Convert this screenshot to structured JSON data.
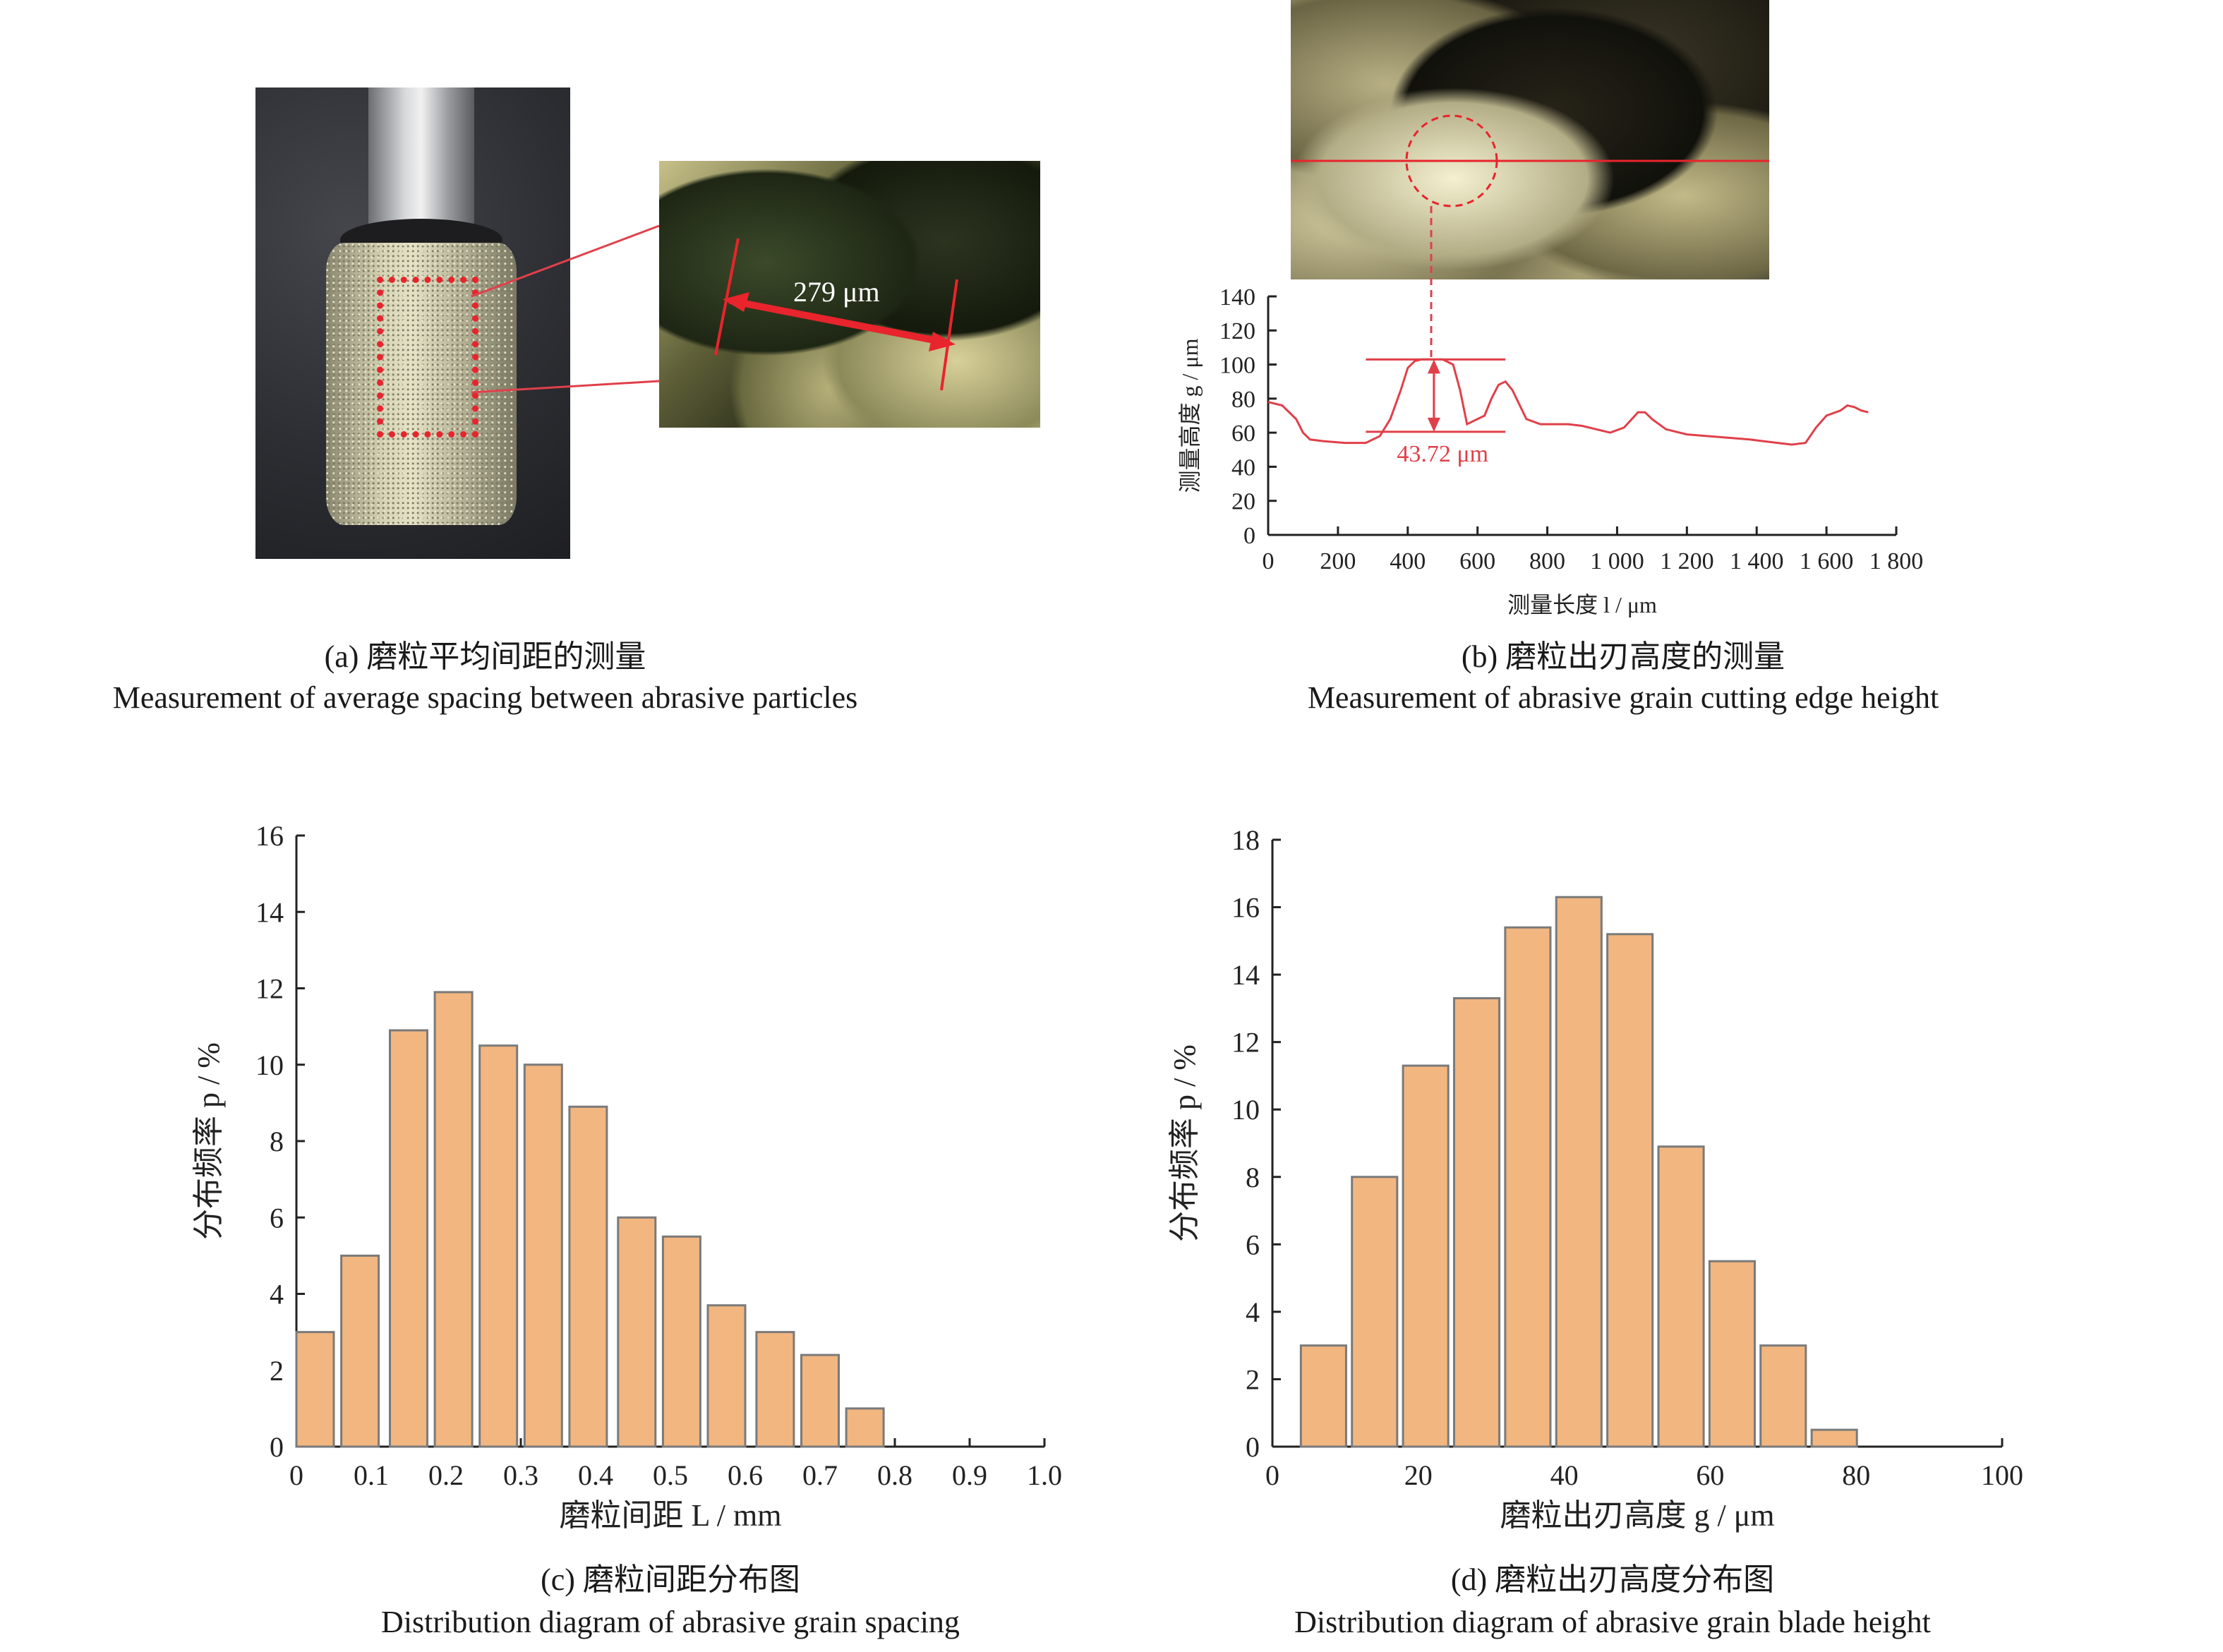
{
  "panel_a": {
    "scale_label": "279 μm",
    "caption_cn": "(a) 磨粒平均间距的测量",
    "caption_en": "Measurement of average spacing between abrasive particles"
  },
  "panel_b": {
    "caption_cn": "(b) 磨粒出刃高度的测量",
    "caption_en": "Measurement of abrasive grain cutting edge height",
    "annotation": "43.72 μm",
    "chart": {
      "type": "line",
      "xlabel": "测量长度 l / μm",
      "ylabel": "测量高度 g / μm",
      "xlim": [
        0,
        1800
      ],
      "ylim": [
        0,
        140
      ],
      "x_ticks": [
        "0",
        "200",
        "400",
        "600",
        "800",
        "1 000",
        "1 200",
        "1 400",
        "1 600",
        "1 800"
      ],
      "y_ticks": [
        "0",
        "20",
        "40",
        "60",
        "80",
        "100",
        "120",
        "140"
      ],
      "color": "#e0404a",
      "series": [
        {
          "x": [
            0,
            40,
            80,
            100,
            120,
            160,
            220,
            280,
            320,
            350,
            380,
            400,
            420,
            440,
            470,
            500,
            530,
            550,
            570,
            590,
            620,
            640,
            660,
            680,
            700,
            740,
            780,
            820,
            860,
            900,
            940,
            980,
            1020,
            1060,
            1080,
            1100,
            1140,
            1200,
            1260,
            1320,
            1380,
            1420,
            1460,
            1500,
            1540,
            1570,
            1600,
            1640,
            1660,
            1680,
            1700,
            1720
          ],
          "y": [
            78,
            76,
            68,
            60,
            56,
            55,
            54,
            54,
            58,
            68,
            85,
            98,
            102,
            103,
            103,
            103,
            100,
            85,
            65,
            67,
            70,
            80,
            88,
            90,
            85,
            68,
            65,
            65,
            65,
            64,
            62,
            60,
            63,
            72,
            72,
            68,
            62,
            59,
            58,
            57,
            56,
            55,
            54,
            53,
            54,
            63,
            70,
            73,
            76,
            75,
            73,
            72
          ]
        }
      ]
    }
  },
  "panel_c": {
    "caption_cn": "(c) 磨粒间距分布图",
    "caption_en": "Distribution diagram of abrasive grain spacing",
    "chart": {
      "type": "bar",
      "xlabel": "磨粒间距 L / mm",
      "ylabel": "分布频率 p / %",
      "xlim": [
        0,
        1.0
      ],
      "ylim": [
        0,
        16
      ],
      "x_ticks": [
        "0",
        "0.1",
        "0.2",
        "0.3",
        "0.4",
        "0.5",
        "0.6",
        "0.7",
        "0.8",
        "0.9",
        "1.0"
      ],
      "y_ticks": [
        "0",
        "2",
        "4",
        "6",
        "8",
        "10",
        "12",
        "14",
        "16"
      ],
      "bar_color": "#f2b681",
      "categories": [
        0.025,
        0.085,
        0.15,
        0.21,
        0.27,
        0.33,
        0.39,
        0.455,
        0.515,
        0.575,
        0.64,
        0.7,
        0.76
      ],
      "values": [
        3,
        5,
        10.9,
        11.9,
        10.5,
        10,
        8.9,
        6,
        5.5,
        3.7,
        3,
        2.4,
        1
      ]
    }
  },
  "panel_d": {
    "caption_cn": "(d) 磨粒出刃高度分布图",
    "caption_en": "Distribution diagram of abrasive grain blade height",
    "chart": {
      "type": "bar",
      "xlabel": "磨粒出刃高度 g / μm",
      "ylabel": "分布频率 p / %",
      "xlim": [
        0,
        100
      ],
      "ylim": [
        0,
        18
      ],
      "x_ticks": [
        "0",
        "20",
        "40",
        "60",
        "80",
        "100"
      ],
      "y_ticks": [
        "0",
        "2",
        "4",
        "6",
        "8",
        "10",
        "12",
        "14",
        "16",
        "18"
      ],
      "bar_color": "#f2b681",
      "categories": [
        7,
        14,
        21,
        28,
        35,
        42,
        49,
        56,
        63,
        70,
        77
      ],
      "values": [
        3,
        8,
        11.3,
        13.3,
        15.4,
        16.3,
        15.2,
        8.9,
        5.5,
        3,
        0.5
      ]
    }
  }
}
